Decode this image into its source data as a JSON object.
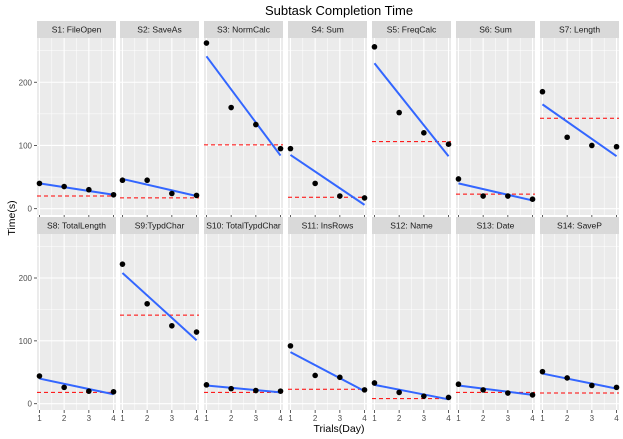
{
  "chart_data": {
    "type": "scatter",
    "title": "Subtask Completion Time",
    "xlabel": "Trials(Day)",
    "ylabel": "Time(s)",
    "x": [
      1,
      2,
      3,
      4
    ],
    "x_ticks": [
      "1",
      "2",
      "3",
      "4"
    ],
    "y_ticks": [
      "0",
      "100",
      "200"
    ],
    "xlim": [
      0.9,
      4.1
    ],
    "ylim": [
      -10,
      270
    ],
    "grid": true,
    "layout": {
      "rows": 2,
      "cols": 7
    },
    "colors": {
      "points": "#000000",
      "fit": "#3366ff",
      "reference": "#ff0000",
      "panel_bg": "#ebebeb",
      "grid": "#ffffff",
      "strip_bg": "#d9d9d9"
    },
    "panels": [
      {
        "label": "S1: FileOpen",
        "values": [
          40,
          35,
          30,
          22
        ],
        "fit": [
          40,
          22
        ],
        "reference": 20
      },
      {
        "label": "S2: SaveAs",
        "values": [
          45,
          45,
          24,
          21
        ],
        "fit": [
          47,
          20
        ],
        "reference": 17
      },
      {
        "label": "S3: NormCalc",
        "values": [
          262,
          160,
          133,
          95
        ],
        "fit": [
          241,
          84
        ],
        "reference": 101
      },
      {
        "label": "S4: Sum",
        "values": [
          95,
          40,
          20,
          17
        ],
        "fit": [
          85,
          6
        ],
        "reference": 18
      },
      {
        "label": "S5: FreqCalc",
        "values": [
          256,
          152,
          120,
          102
        ],
        "fit": [
          230,
          83
        ],
        "reference": 106
      },
      {
        "label": "S6: Sum",
        "values": [
          47,
          20,
          20,
          15
        ],
        "fit": [
          40,
          13
        ],
        "reference": 23
      },
      {
        "label": "S7: Length",
        "values": [
          185,
          113,
          100,
          98
        ],
        "fit": [
          165,
          83
        ],
        "reference": 143
      },
      {
        "label": "S8: TotalLength",
        "values": [
          44,
          26,
          20,
          19
        ],
        "fit": [
          40,
          15
        ],
        "reference": 18
      },
      {
        "label": "S9:TypdChar",
        "values": [
          222,
          159,
          124,
          114
        ],
        "fit": [
          208,
          101
        ],
        "reference": 141
      },
      {
        "label": "S10: TotalTypdChar",
        "values": [
          30,
          24,
          21,
          20
        ],
        "fit": [
          29,
          18
        ],
        "reference": 18
      },
      {
        "label": "S11: InsRows",
        "values": [
          92,
          45,
          42,
          22
        ],
        "fit": [
          82,
          20
        ],
        "reference": 23
      },
      {
        "label": "S12: Name",
        "values": [
          33,
          18,
          12,
          10
        ],
        "fit": [
          30,
          7
        ],
        "reference": 8
      },
      {
        "label": "S13: Date",
        "values": [
          31,
          22,
          17,
          14
        ],
        "fit": [
          29,
          14
        ],
        "reference": 18
      },
      {
        "label": "S14: SaveP",
        "values": [
          51,
          41,
          29,
          26
        ],
        "fit": [
          48,
          24
        ],
        "reference": 17
      }
    ]
  }
}
